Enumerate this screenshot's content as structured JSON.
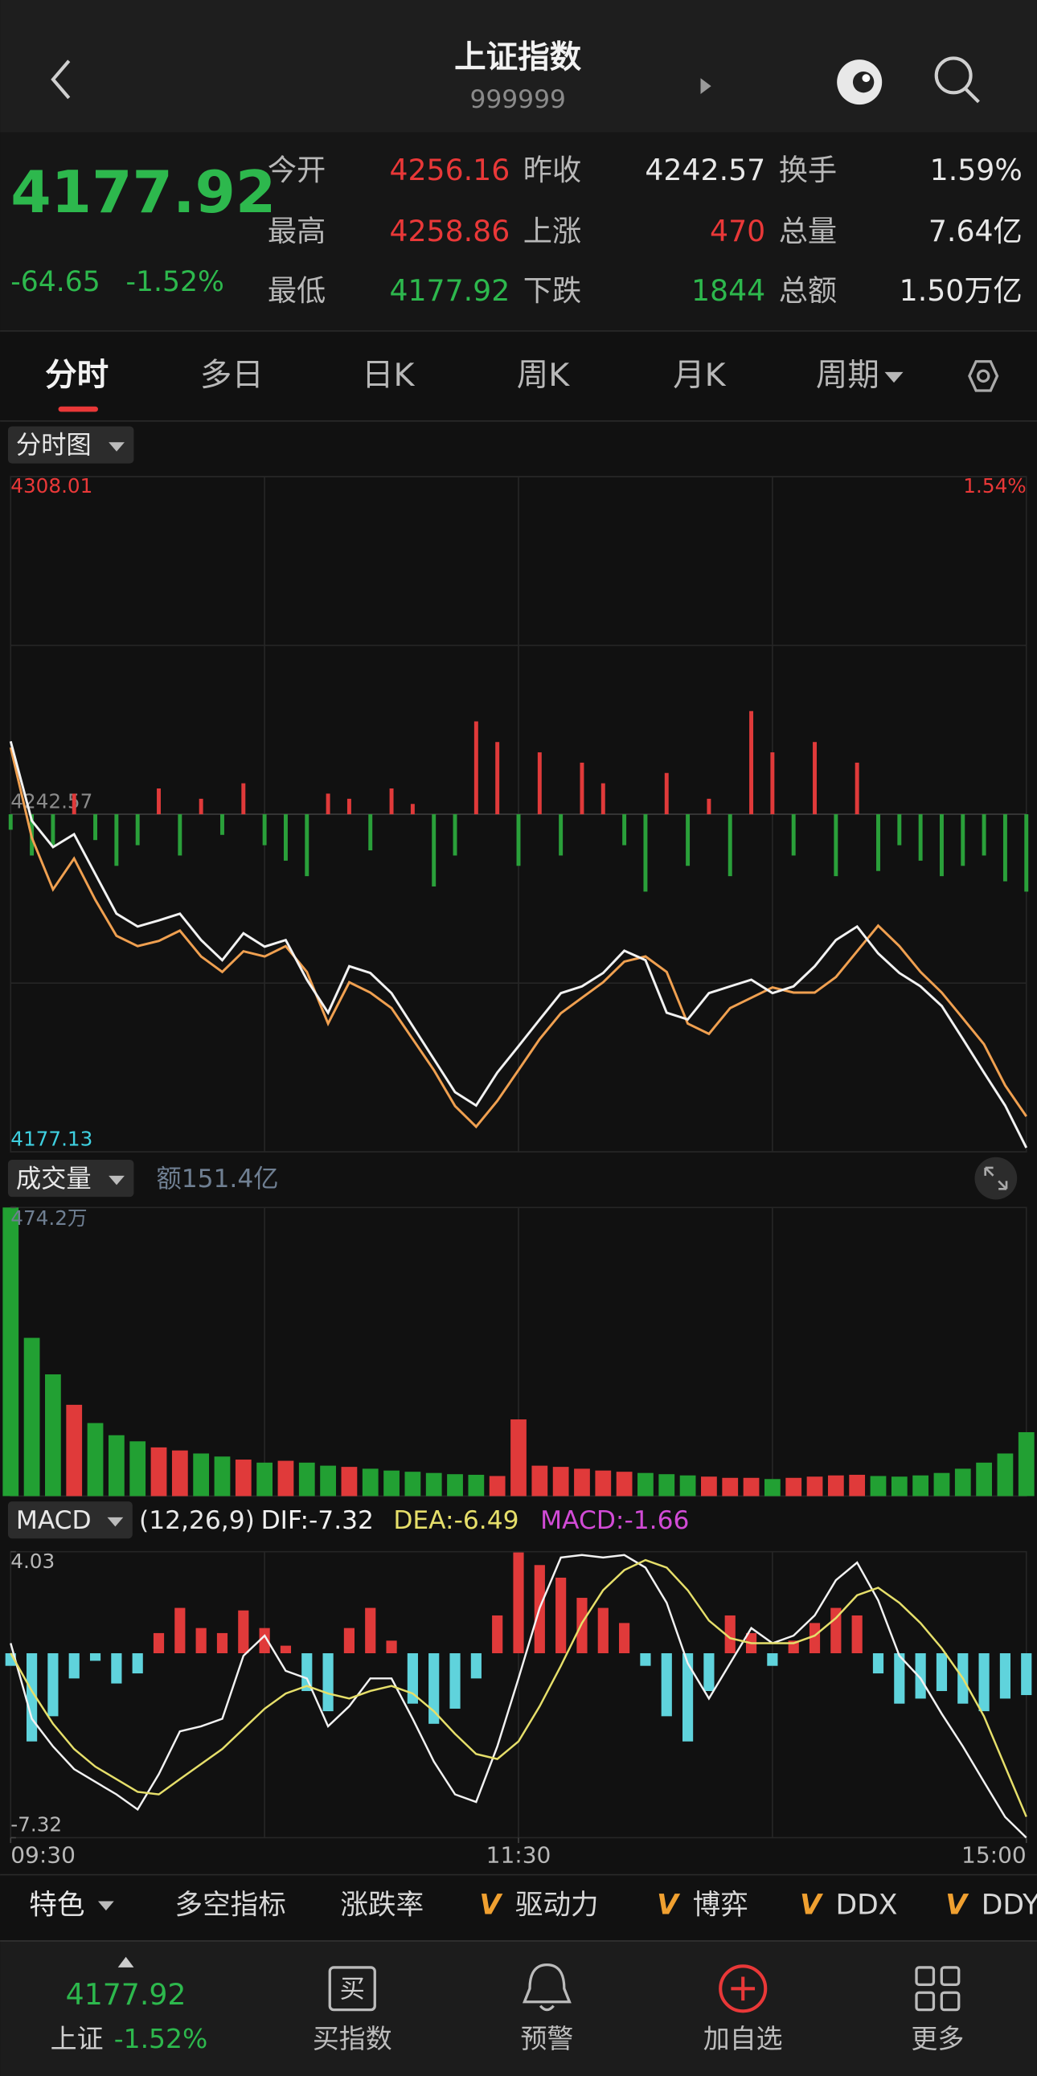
{
  "header": {
    "title": "上证指数",
    "code": "999999"
  },
  "quote": {
    "price": "4177.92",
    "change": "-64.65",
    "change_pct": "-1.52%",
    "fields": [
      {
        "label": "今开",
        "value": "4256.16",
        "color": "#e93838"
      },
      {
        "label": "昨收",
        "value": "4242.57",
        "color": "#e8e8e8"
      },
      {
        "label": "换手",
        "value": "1.59%",
        "color": "#e8e8e8"
      },
      {
        "label": "最高",
        "value": "4258.86",
        "color": "#e93838"
      },
      {
        "label": "上涨",
        "value": "470",
        "color": "#e93838"
      },
      {
        "label": "总量",
        "value": "7.64亿",
        "color": "#e8e8e8"
      },
      {
        "label": "最低",
        "value": "4177.92",
        "color": "#2db84d"
      },
      {
        "label": "下跌",
        "value": "1844",
        "color": "#2db84d"
      },
      {
        "label": "总额",
        "value": "1.50万亿",
        "color": "#e8e8e8"
      }
    ]
  },
  "tabs": [
    "分时",
    "多日",
    "日K",
    "周K",
    "月K",
    "周期"
  ],
  "chart_data": [
    {
      "type": "line",
      "selector": "分时图",
      "x": [
        0,
        5,
        10,
        15,
        20,
        25,
        30,
        35,
        40,
        45,
        50,
        55,
        60,
        65,
        70,
        75,
        80,
        85,
        90,
        95,
        100,
        105,
        110,
        115,
        120,
        125,
        130,
        135,
        140,
        145,
        150,
        155,
        160,
        165,
        170,
        175,
        180,
        185,
        190,
        195,
        200,
        205,
        210,
        215,
        220,
        225,
        230,
        235,
        240
      ],
      "xlim": [
        0,
        240
      ],
      "ylim": [
        4177.13,
        4308.01
      ],
      "yticks": [
        4177.13,
        4242.57,
        4308.01
      ],
      "ytick_colors": [
        "#3fd0e0",
        "#8a8a8a",
        "#e93838"
      ],
      "right_label": "1.54%",
      "series": [
        {
          "color": "#f2f2f2",
          "values": [
            4256.7,
            4241.3,
            4236.2,
            4238.7,
            4231.0,
            4223.3,
            4220.8,
            4222.0,
            4223.3,
            4218.2,
            4214.3,
            4219.5,
            4216.9,
            4218.2,
            4210.5,
            4204.1,
            4213.1,
            4211.8,
            4207.9,
            4201.5,
            4195.1,
            4188.7,
            4186.1,
            4192.5,
            4197.6,
            4202.8,
            4207.9,
            4209.2,
            4211.8,
            4216.1,
            4214.3,
            4204.1,
            4202.8,
            4207.9,
            4209.2,
            4210.5,
            4207.9,
            4209.2,
            4213.1,
            4218.2,
            4220.8,
            4215.6,
            4211.8,
            4209.2,
            4205.4,
            4199.0,
            4192.5,
            4186.1,
            4177.92
          ]
        },
        {
          "color": "#f0a050",
          "values": [
            4255.5,
            4238,
            4228,
            4234,
            4226,
            4219,
            4217,
            4218,
            4220,
            4215,
            4212,
            4216,
            4215,
            4217,
            4212,
            4202,
            4210,
            4208,
            4205,
            4199,
            4193,
            4186,
            4182,
            4187,
            4193,
            4199,
            4204,
            4207,
            4210,
            4214,
            4215,
            4212,
            4202,
            4200,
            4205,
            4207,
            4209,
            4208,
            4208,
            4211,
            4216,
            4221,
            4217,
            4212,
            4208,
            4203,
            4198,
            4190,
            4184
          ]
        },
        {
          "type": "bar",
          "color": "#e03a3a",
          "negative_color": "#2aa03a",
          "values": [
            -3,
            -8,
            -6,
            4,
            -5,
            -10,
            -6,
            5,
            -8,
            3,
            -4,
            6,
            -6,
            -9,
            -12,
            4,
            3,
            -7,
            5,
            2,
            -14,
            -8,
            18,
            14,
            -10,
            12,
            -8,
            10,
            6,
            -6,
            -15,
            8,
            -10,
            3,
            -12,
            20,
            12,
            -8,
            14,
            -12,
            10,
            -11,
            -6,
            -9,
            -12,
            -10,
            -8,
            -13,
            -15
          ]
        }
      ]
    },
    {
      "type": "bar",
      "selector": "成交量",
      "amount_label": "额151.4亿",
      "ylim": [
        0,
        474.2
      ],
      "yticks": [
        {
          "value": 474.2,
          "label": "474.2万"
        }
      ],
      "up_color": "#e03a3a",
      "down_color": "#22a033",
      "values": [
        474.2,
        260,
        200,
        150,
        120,
        100,
        90,
        80,
        75,
        70,
        65,
        60,
        55,
        58,
        55,
        50,
        48,
        45,
        42,
        40,
        38,
        36,
        35,
        33,
        126,
        50,
        48,
        45,
        42,
        40,
        38,
        36,
        34,
        32,
        30,
        30,
        28,
        30,
        32,
        34,
        35,
        33,
        32,
        34,
        38,
        45,
        55,
        70,
        105
      ]
    },
    {
      "type": "macd",
      "selector": "MACD",
      "params": "(12,26,9)",
      "ylim": [
        -7.32,
        4.03
      ],
      "yticks": [
        -7.32,
        4.03
      ],
      "xticks": [
        {
          "value": 0,
          "label": "09:30"
        },
        {
          "value": 120,
          "label": "11:30"
        },
        {
          "value": 240,
          "label": "15:00"
        }
      ],
      "series": [
        {
          "name": "DIF:-7.32",
          "color": "#f2f2f2",
          "values": [
            0.4,
            -2.6,
            -3.7,
            -4.6,
            -5.1,
            -5.6,
            -6.2,
            -4.8,
            -3.1,
            -2.9,
            -2.6,
            -0.1,
            0.7,
            -0.7,
            -1.0,
            -2.9,
            -2.1,
            -1.0,
            -1.0,
            -2.6,
            -4.3,
            -5.6,
            -5.9,
            -3.7,
            -1.0,
            1.8,
            3.8,
            3.9,
            3.8,
            3.9,
            3.4,
            2.0,
            -0.4,
            -1.8,
            -0.4,
            1.0,
            0.4,
            0.7,
            1.5,
            2.9,
            3.6,
            2.1,
            -0.1,
            -1.0,
            -2.4,
            -3.7,
            -5.1,
            -6.5,
            -7.32
          ]
        },
        {
          "name": "DEA:-6.49",
          "color": "#e6df6a",
          "values": [
            0,
            -1.5,
            -2.8,
            -3.8,
            -4.5,
            -5.0,
            -5.5,
            -5.6,
            -5.0,
            -4.4,
            -3.8,
            -3.0,
            -2.2,
            -1.6,
            -1.3,
            -1.6,
            -1.8,
            -1.5,
            -1.3,
            -1.6,
            -2.3,
            -3.2,
            -4.0,
            -4.2,
            -3.5,
            -2.1,
            -0.5,
            1.2,
            2.5,
            3.3,
            3.7,
            3.4,
            2.5,
            1.3,
            0.6,
            0.4,
            0.4,
            0.4,
            0.7,
            1.4,
            2.3,
            2.6,
            2.0,
            1.2,
            0.2,
            -1.0,
            -2.5,
            -4.5,
            -6.49
          ]
        },
        {
          "name": "MACD:-1.66",
          "type": "bar",
          "color": "#d24bd6",
          "up_color": "#e03a3a",
          "down_color": "#5fd3dc",
          "values": [
            -0.5,
            -3.5,
            -2.5,
            -1.0,
            -0.3,
            -1.2,
            -0.8,
            0.8,
            1.8,
            1.0,
            0.8,
            1.7,
            1.0,
            0.3,
            -1.5,
            -2.3,
            1.0,
            1.8,
            0.5,
            -2.0,
            -2.8,
            -2.2,
            -1.0,
            1.5,
            4.0,
            3.5,
            3.0,
            2.2,
            1.8,
            1.2,
            -0.5,
            -2.5,
            -3.5,
            -1.5,
            1.5,
            0.8,
            -0.5,
            0.5,
            1.2,
            1.8,
            1.5,
            -0.8,
            -2.0,
            -1.8,
            -1.5,
            -2.0,
            -2.3,
            -1.8,
            -1.66
          ]
        }
      ]
    }
  ],
  "toolbar": {
    "first": "特色",
    "mark": "V",
    "items": [
      "多空指标",
      "涨跌率"
    ],
    "marked_items": [
      "驱动力",
      "博弈",
      "DDX",
      "DDY"
    ]
  },
  "bottom_nav": {
    "price": "4177.92",
    "name": "上证",
    "pct": "-1.52%",
    "buy_icon": "买",
    "items": [
      "买指数",
      "预警",
      "加自选",
      "更多"
    ]
  }
}
